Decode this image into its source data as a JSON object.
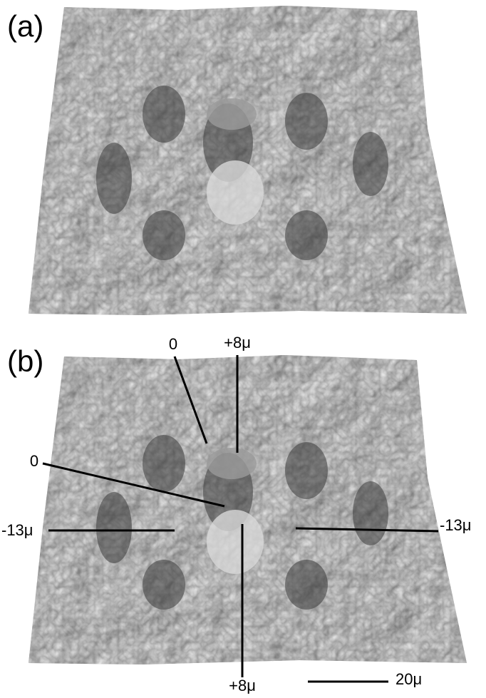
{
  "panels": [
    {
      "label": "(a)"
    },
    {
      "label": "(b)",
      "annotations": [
        {
          "text": "0"
        },
        {
          "text": "+8μ"
        },
        {
          "text": "0"
        },
        {
          "text": "-13μ"
        },
        {
          "text": "-13μ"
        },
        {
          "text": "+8μ"
        }
      ],
      "scale_bar": {
        "label": "20μ"
      }
    }
  ]
}
